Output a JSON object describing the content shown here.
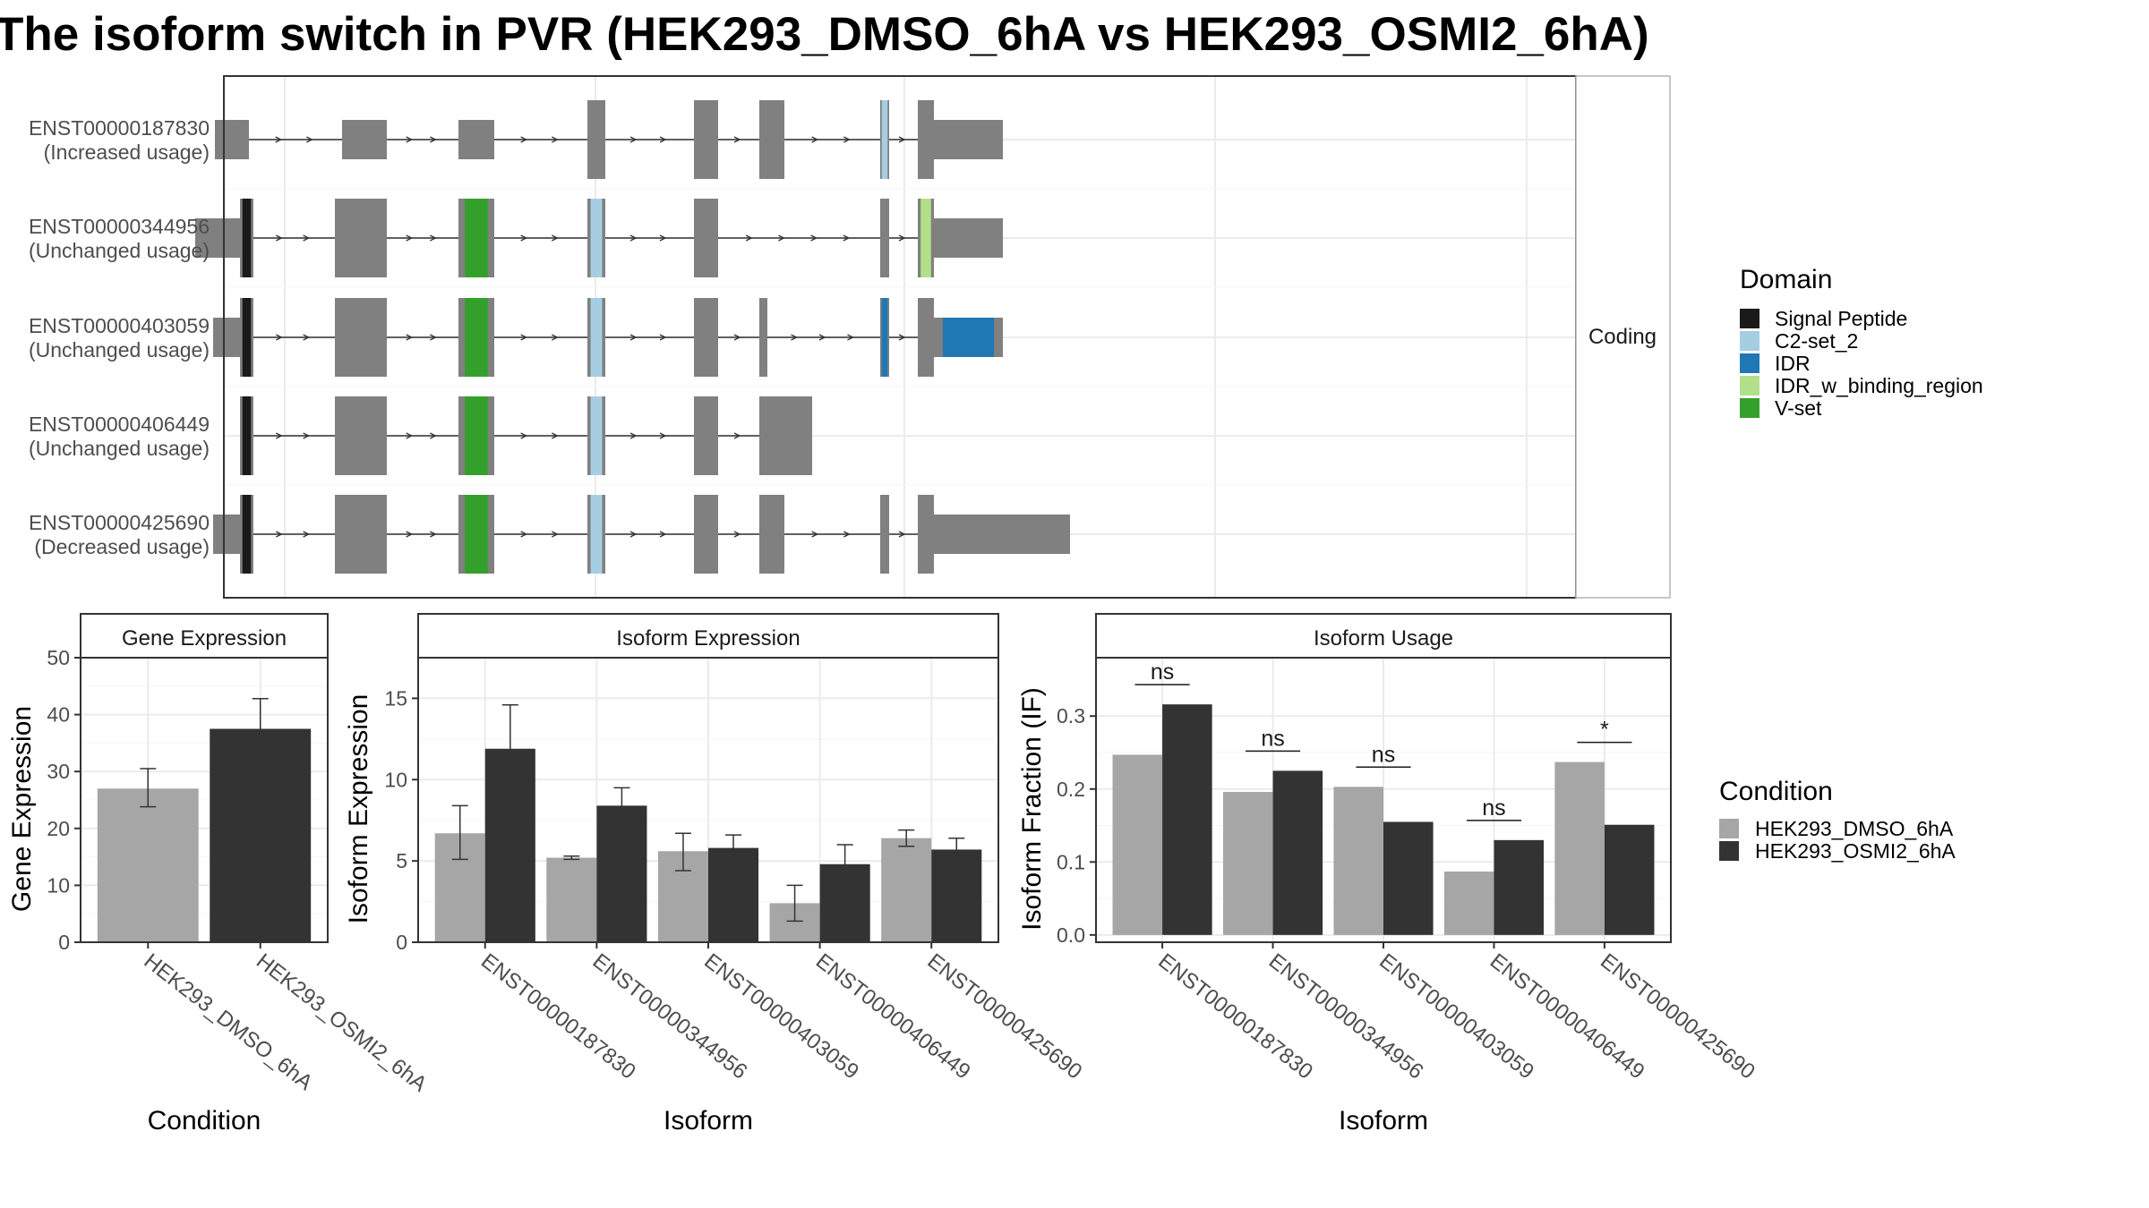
{
  "title": "The isoform switch in PVR (HEK293_DMSO_6hA vs HEK293_OSMI2_6hA)",
  "colors": {
    "exon": "#808080",
    "dmso": "#a6a6a6",
    "osmi2": "#333333",
    "panel_border": "#333333",
    "strip_fill": "#ffffff",
    "grid": "#ebebeb",
    "domain_colors": {
      "Signal Peptide": "#1a1a1a",
      "C2-set_2": "#a6cee3",
      "IDR": "#1f78b4",
      "IDR_w_binding_region": "#b2df8a",
      "V-set": "#33a02c"
    }
  },
  "structure_panel": {
    "strip_label": "Coding",
    "legend_title": "Domain",
    "legend_items": [
      "Signal Peptide",
      "C2-set_2",
      "IDR",
      "IDR_w_binding_region",
      "V-set"
    ],
    "transcripts": [
      {
        "id": "ENST00000187830",
        "usage": "(Increased usage)",
        "coding_start": 3,
        "domains": [
          [
            6,
            "C2-set_2"
          ]
        ],
        "exons": [
          [
            240,
            278
          ],
          [
            382,
            432
          ],
          [
            512,
            552
          ],
          [
            656,
            676
          ],
          [
            775,
            802
          ],
          [
            848,
            876
          ],
          [
            983,
            993
          ],
          [
            1025,
            1043
          ],
          [
            1043,
            1120
          ]
        ]
      },
      {
        "id": "ENST00000344956",
        "usage": "(Unchanged usage)",
        "coding_start": 1,
        "domains": [
          [
            1,
            "Signal Peptide"
          ],
          [
            3,
            "V-set"
          ],
          [
            4,
            "C2-set_2"
          ],
          [
            7,
            "IDR_w_binding_region"
          ],
          [
            9,
            "IDR_w_binding_region"
          ],
          [
            10,
            "IDR_w_binding_region"
          ]
        ],
        "exons": [
          [
            218,
            268
          ],
          [
            268,
            283
          ],
          [
            374,
            432
          ],
          [
            512,
            552
          ],
          [
            656,
            676
          ],
          [
            775,
            802
          ],
          [
            983,
            993
          ],
          [
            1025,
            1043
          ],
          [
            1043,
            1120
          ]
        ]
      },
      {
        "id": "ENST00000403059",
        "usage": "(Unchanged usage)",
        "coding_start": 1,
        "domains": [
          [
            1,
            "Signal Peptide"
          ],
          [
            3,
            "V-set"
          ],
          [
            4,
            "C2-set_2"
          ],
          [
            7,
            "IDR"
          ],
          [
            9,
            "IDR"
          ],
          [
            10,
            "IDR"
          ],
          [
            11,
            "IDR"
          ]
        ],
        "exons": [
          [
            238,
            268
          ],
          [
            268,
            283
          ],
          [
            374,
            432
          ],
          [
            512,
            552
          ],
          [
            656,
            676
          ],
          [
            775,
            802
          ],
          [
            848,
            857
          ],
          [
            983,
            993
          ],
          [
            1025,
            1043
          ],
          [
            1043,
            1120
          ]
        ]
      },
      {
        "id": "ENST00000406449",
        "usage": "(Unchanged usage)",
        "coding_start": 0,
        "domains": [
          [
            0,
            "Signal Peptide"
          ],
          [
            2,
            "V-set"
          ],
          [
            3,
            "C2-set_2"
          ]
        ],
        "exons": [
          [
            268,
            283
          ],
          [
            374,
            432
          ],
          [
            512,
            552
          ],
          [
            656,
            676
          ],
          [
            775,
            802
          ],
          [
            848,
            885
          ],
          [
            885,
            907
          ]
        ]
      },
      {
        "id": "ENST00000425690",
        "usage": "(Decreased usage)",
        "coding_start": 1,
        "domains": [
          [
            1,
            "Signal Peptide"
          ],
          [
            3,
            "V-set"
          ],
          [
            4,
            "C2-set_2"
          ]
        ],
        "exons": [
          [
            238,
            268
          ],
          [
            268,
            283
          ],
          [
            374,
            432
          ],
          [
            512,
            552
          ],
          [
            656,
            676
          ],
          [
            775,
            802
          ],
          [
            848,
            876
          ],
          [
            983,
            993
          ],
          [
            1025,
            1043
          ],
          [
            1043,
            1195
          ]
        ]
      }
    ]
  },
  "conditions": [
    "HEK293_DMSO_6hA",
    "HEK293_OSMI2_6hA"
  ],
  "legend_title_condition": "Condition",
  "chart_data": [
    {
      "type": "bar",
      "title": "Gene Expression",
      "xlabel": "Condition",
      "ylabel": "Gene Expression",
      "ylim": [
        0,
        50
      ],
      "yticks": [
        0,
        10,
        20,
        30,
        40,
        50
      ],
      "categories": [
        "HEK293_DMSO_6hA",
        "HEK293_OSMI2_6hA"
      ],
      "values": [
        27.0,
        37.5
      ],
      "error_low": [
        23.8,
        32.2
      ],
      "error_high": [
        30.5,
        42.8
      ],
      "grid": true
    },
    {
      "type": "bar",
      "title": "Isoform Expression",
      "xlabel": "Isoform",
      "ylabel": "Isoform Expression",
      "ylim": [
        0,
        17.5
      ],
      "yticks": [
        0,
        5,
        10,
        15
      ],
      "categories": [
        "ENST00000187830",
        "ENST00000344956",
        "ENST00000403059",
        "ENST00000406449",
        "ENST00000425690"
      ],
      "series": [
        {
          "values": [
            6.7,
            5.2,
            5.6,
            2.4,
            6.4
          ],
          "error_low": [
            5.1,
            5.1,
            4.4,
            1.3,
            5.9
          ],
          "error_high": [
            8.4,
            5.3,
            6.7,
            3.5,
            6.9
          ]
        },
        {
          "values": [
            11.9,
            8.4,
            5.8,
            4.8,
            5.7
          ],
          "error_low": [
            9.2,
            7.4,
            5.1,
            3.6,
            5.0
          ],
          "error_high": [
            14.6,
            9.5,
            6.6,
            6.0,
            6.4
          ]
        }
      ],
      "grid": true
    },
    {
      "type": "bar",
      "title": "Isoform Usage",
      "xlabel": "Isoform",
      "ylabel": "Isoform Fraction (IF)",
      "ylim": [
        -0.01,
        0.38
      ],
      "yticks": [
        0.0,
        0.1,
        0.2,
        0.3
      ],
      "ytick_labels": [
        "0.0",
        "0.1",
        "0.2",
        "0.3"
      ],
      "categories": [
        "ENST00000187830",
        "ENST00000344956",
        "ENST00000403059",
        "ENST00000406449",
        "ENST00000425690"
      ],
      "series": [
        {
          "values": [
            0.247,
            0.196,
            0.203,
            0.087,
            0.237
          ]
        },
        {
          "values": [
            0.316,
            0.225,
            0.155,
            0.13,
            0.151
          ]
        }
      ],
      "significance": [
        "ns",
        "ns",
        "ns",
        "ns",
        "*"
      ],
      "grid": true
    }
  ]
}
